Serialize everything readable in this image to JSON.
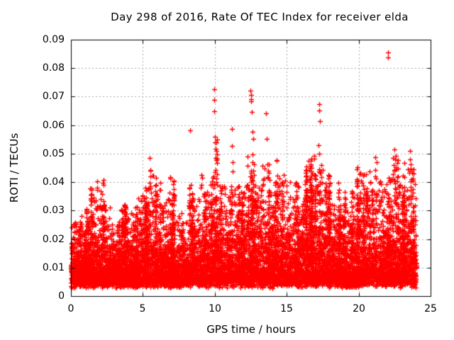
{
  "frame": {
    "background": "#ffffff",
    "border_color": "#000000",
    "text_color": "#000000"
  },
  "chart_data": {
    "type": "scatter",
    "title": "Day 298 of 2016, Rate Of TEC Index for receiver elda",
    "xlabel": "GPS time / hours",
    "ylabel": "ROTI / TECUs",
    "xlim": [
      0,
      25
    ],
    "ylim": [
      0,
      0.09
    ],
    "xticks": [
      0,
      5,
      10,
      15,
      20,
      25
    ],
    "yticks": [
      0,
      0.01,
      0.02,
      0.03,
      0.04,
      0.05,
      0.06,
      0.07,
      0.08,
      0.09
    ],
    "xtick_labels": [
      "0",
      "5",
      "10",
      "15",
      "20",
      "25"
    ],
    "ytick_labels": [
      "0",
      "0.01",
      "0.02",
      "0.03",
      "0.04",
      "0.05",
      "0.06",
      "0.07",
      "0.08",
      "0.09"
    ],
    "grid": {
      "on": true,
      "style": "dashed",
      "color": "#a8a8a8"
    },
    "legend": "none",
    "marker": {
      "shape": "plus",
      "color": "#ff0000",
      "size": 7
    },
    "data_hour_range": [
      0,
      24
    ],
    "scatter_model": {
      "seed": 2981016,
      "n_base_points": 8000,
      "n_streaks": 130,
      "base_min": 0.0028,
      "base_jitter": 0.0025,
      "envelope_step_hours": 0.5,
      "envelope_top": [
        0.03,
        0.026,
        0.024,
        0.034,
        0.04,
        0.03,
        0.026,
        0.027,
        0.033,
        0.028,
        0.03,
        0.047,
        0.04,
        0.033,
        0.035,
        0.03,
        0.03,
        0.036,
        0.042,
        0.036,
        0.047,
        0.04,
        0.036,
        0.042,
        0.038,
        0.05,
        0.046,
        0.048,
        0.035,
        0.043,
        0.043,
        0.041,
        0.04,
        0.042,
        0.047,
        0.046,
        0.035,
        0.032,
        0.035,
        0.033,
        0.04,
        0.044,
        0.044,
        0.036,
        0.046,
        0.042,
        0.04,
        0.047,
        0.04
      ]
    },
    "outliers": [
      [
        9.95,
        0.0727
      ],
      [
        9.97,
        0.0688
      ],
      [
        9.97,
        0.065
      ],
      [
        12.48,
        0.0721
      ],
      [
        12.5,
        0.0706
      ],
      [
        12.5,
        0.0692
      ],
      [
        12.52,
        0.0683
      ],
      [
        12.55,
        0.0646
      ],
      [
        12.6,
        0.0577
      ],
      [
        12.65,
        0.0552
      ],
      [
        12.6,
        0.0497
      ],
      [
        12.7,
        0.0462
      ],
      [
        12.74,
        0.0424
      ],
      [
        13.55,
        0.0641
      ],
      [
        13.6,
        0.0553
      ],
      [
        13.64,
        0.0462
      ],
      [
        13.68,
        0.0417
      ],
      [
        17.26,
        0.0674
      ],
      [
        17.28,
        0.0652
      ],
      [
        17.3,
        0.0614
      ],
      [
        17.22,
        0.0529
      ],
      [
        17.24,
        0.05
      ],
      [
        17.4,
        0.046
      ],
      [
        17.42,
        0.0417
      ],
      [
        17.44,
        0.0397
      ],
      [
        22.04,
        0.0856
      ],
      [
        22.06,
        0.0839
      ],
      [
        8.3,
        0.0583
      ],
      [
        8.34,
        0.039
      ],
      [
        10.0,
        0.056
      ],
      [
        10.02,
        0.054
      ],
      [
        10.04,
        0.0516
      ],
      [
        10.06,
        0.0486
      ],
      [
        10.08,
        0.0442
      ],
      [
        10.1,
        0.0412
      ],
      [
        11.18,
        0.0586
      ],
      [
        11.2,
        0.0528
      ],
      [
        11.24,
        0.0471
      ],
      [
        11.26,
        0.0437
      ],
      [
        5.48,
        0.0486
      ],
      [
        5.5,
        0.044
      ],
      [
        5.54,
        0.042
      ],
      [
        1.8,
        0.0404
      ],
      [
        1.82,
        0.038
      ],
      [
        1.84,
        0.0373
      ],
      [
        9.08,
        0.0425
      ],
      [
        9.1,
        0.0415
      ],
      [
        20.78,
        0.0437
      ],
      [
        20.8,
        0.04
      ],
      [
        16.3,
        0.042
      ],
      [
        22.4,
        0.0484
      ],
      [
        22.42,
        0.046
      ],
      [
        23.55,
        0.051
      ],
      [
        23.58,
        0.048
      ],
      [
        23.6,
        0.0462
      ],
      [
        23.62,
        0.044
      ],
      [
        14.8,
        0.0424
      ],
      [
        14.9,
        0.0405
      ],
      [
        15.0,
        0.0387
      ]
    ]
  }
}
